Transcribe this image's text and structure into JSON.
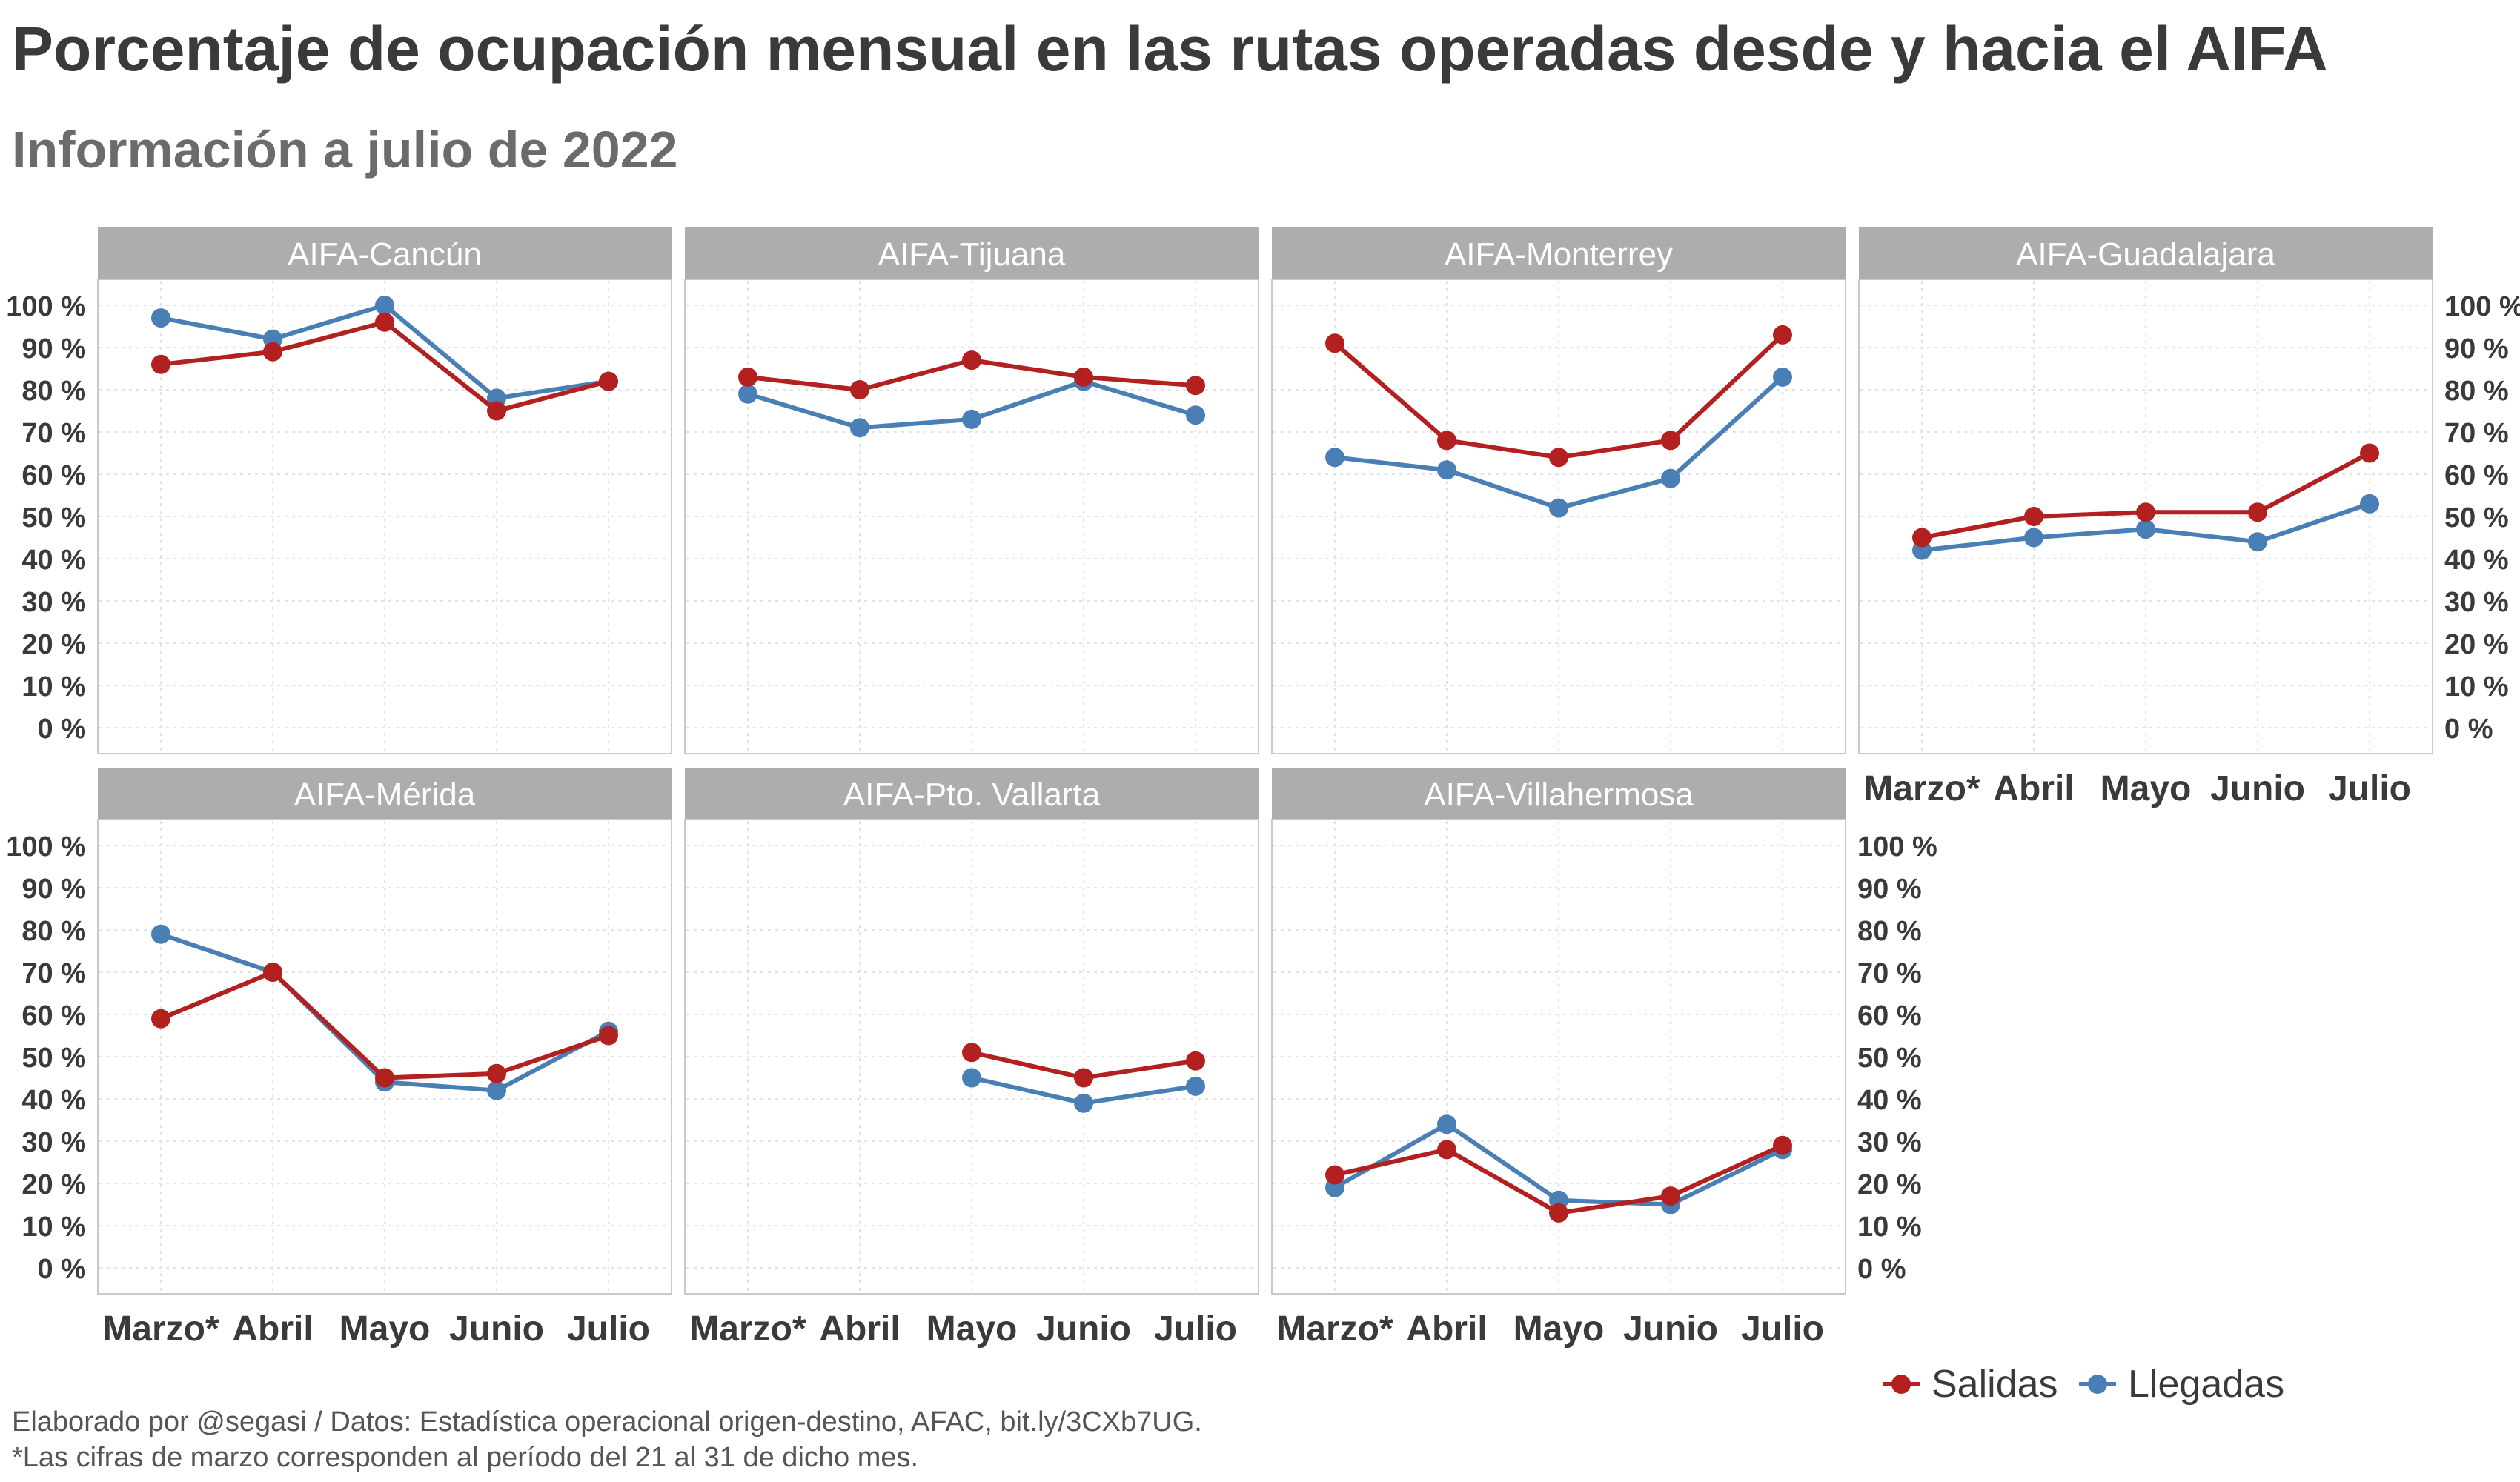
{
  "title": "Porcentaje de ocupación mensual en las rutas operadas desde y hacia el AIFA",
  "subtitle": "Información a julio de 2022",
  "caption": {
    "source": "Elaborado por @segasi / Datos: Estadística operacional origen-destino, AFAC, bit.ly/3CXb7UG.",
    "note": "*Las cifras de marzo corresponden al período del 21 al 31 de dicho mes."
  },
  "colors": {
    "salidas": "#b2201f",
    "llegadas": "#4a7fb5",
    "strip": "#adadad",
    "strip_text": "#ffffff",
    "grid": "#e3e3e3",
    "axis_text": "#3a3a3a"
  },
  "chart_data": {
    "type": "line",
    "categories": [
      "Marzo*",
      "Abril",
      "Mayo",
      "Junio",
      "Julio"
    ],
    "y_tick_labels": [
      "0 %",
      "10 %",
      "20 %",
      "30 %",
      "40 %",
      "50 %",
      "60 %",
      "70 %",
      "80 %",
      "90 %",
      "100 %"
    ],
    "ylim": [
      0,
      100
    ],
    "xlabel": "",
    "ylabel": "",
    "legend": {
      "position": "bottom-right",
      "items": [
        {
          "key": "salidas",
          "label": "Salidas"
        },
        {
          "key": "llegadas",
          "label": "Llegadas"
        }
      ]
    },
    "panels": [
      {
        "name": "AIFA-Cancún",
        "series": [
          {
            "key": "salidas",
            "name": "Salidas",
            "values": [
              86,
              89,
              96,
              75,
              82
            ]
          },
          {
            "key": "llegadas",
            "name": "Llegadas",
            "values": [
              97,
              92,
              100,
              78,
              82
            ]
          }
        ]
      },
      {
        "name": "AIFA-Tijuana",
        "series": [
          {
            "key": "salidas",
            "name": "Salidas",
            "values": [
              83,
              80,
              87,
              83,
              81
            ]
          },
          {
            "key": "llegadas",
            "name": "Llegadas",
            "values": [
              79,
              71,
              73,
              82,
              74
            ]
          }
        ]
      },
      {
        "name": "AIFA-Monterrey",
        "series": [
          {
            "key": "salidas",
            "name": "Salidas",
            "values": [
              91,
              68,
              64,
              68,
              93
            ]
          },
          {
            "key": "llegadas",
            "name": "Llegadas",
            "values": [
              64,
              61,
              52,
              59,
              83
            ]
          }
        ]
      },
      {
        "name": "AIFA-Guadalajara",
        "series": [
          {
            "key": "salidas",
            "name": "Salidas",
            "values": [
              45,
              50,
              51,
              51,
              65
            ]
          },
          {
            "key": "llegadas",
            "name": "Llegadas",
            "values": [
              42,
              45,
              47,
              44,
              53
            ]
          }
        ]
      },
      {
        "name": "AIFA-Mérida",
        "series": [
          {
            "key": "salidas",
            "name": "Salidas",
            "values": [
              59,
              70,
              45,
              46,
              55
            ]
          },
          {
            "key": "llegadas",
            "name": "Llegadas",
            "values": [
              79,
              70,
              44,
              42,
              56
            ]
          }
        ]
      },
      {
        "name": "AIFA-Pto. Vallarta",
        "series": [
          {
            "key": "salidas",
            "name": "Salidas",
            "values": [
              null,
              null,
              51,
              45,
              49
            ]
          },
          {
            "key": "llegadas",
            "name": "Llegadas",
            "values": [
              null,
              null,
              45,
              39,
              43
            ]
          }
        ]
      },
      {
        "name": "AIFA-Villahermosa",
        "series": [
          {
            "key": "salidas",
            "name": "Salidas",
            "values": [
              22,
              28,
              13,
              17,
              29
            ]
          },
          {
            "key": "llegadas",
            "name": "Llegadas",
            "values": [
              19,
              34,
              16,
              15,
              28
            ]
          }
        ]
      }
    ]
  }
}
